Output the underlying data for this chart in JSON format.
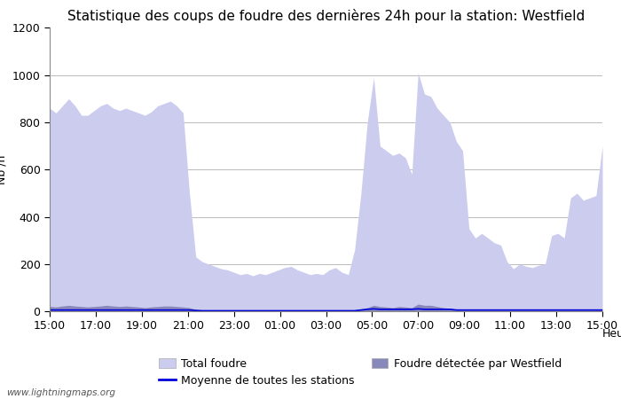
{
  "title": "Statistique des coups de foudre des dernières 24h pour la station: Westfield",
  "xlabel": "Heure",
  "ylabel": "Nb /h",
  "watermark": "www.lightningmaps.org",
  "ylim": [
    0,
    1200
  ],
  "yticks": [
    0,
    200,
    400,
    600,
    800,
    1000,
    1200
  ],
  "x_labels": [
    "15:00",
    "17:00",
    "19:00",
    "21:00",
    "23:00",
    "01:00",
    "03:00",
    "05:00",
    "07:00",
    "09:00",
    "11:00",
    "13:00",
    "15:00"
  ],
  "total_foudre_color": "#ccccee",
  "detected_color": "#8888bb",
  "moyenne_color": "#0000dd",
  "background_color": "#ffffff",
  "grid_color": "#bbbbbb",
  "title_fontsize": 11,
  "axis_fontsize": 9,
  "tick_fontsize": 9,
  "legend_fontsize": 9,
  "total_foudre": [
    860,
    840,
    870,
    900,
    870,
    830,
    830,
    850,
    870,
    880,
    860,
    850,
    860,
    850,
    840,
    830,
    845,
    870,
    880,
    890,
    870,
    840,
    500,
    230,
    210,
    200,
    190,
    180,
    175,
    165,
    155,
    160,
    150,
    160,
    155,
    165,
    175,
    185,
    190,
    175,
    165,
    155,
    160,
    155,
    175,
    185,
    165,
    155,
    260,
    500,
    800,
    990,
    700,
    680,
    660,
    670,
    650,
    580,
    1010,
    920,
    910,
    860,
    830,
    800,
    720,
    680,
    350,
    310,
    330,
    310,
    290,
    280,
    210,
    180,
    200,
    190,
    185,
    195,
    200,
    320,
    330,
    310,
    480,
    500,
    470,
    480,
    490,
    700
  ],
  "detected": [
    20,
    18,
    22,
    25,
    22,
    20,
    18,
    20,
    22,
    25,
    22,
    20,
    22,
    20,
    18,
    15,
    18,
    20,
    22,
    22,
    20,
    18,
    15,
    8,
    5,
    5,
    5,
    5,
    5,
    5,
    5,
    5,
    5,
    5,
    5,
    5,
    5,
    5,
    5,
    5,
    5,
    5,
    5,
    5,
    5,
    5,
    5,
    5,
    5,
    10,
    15,
    25,
    20,
    18,
    15,
    20,
    18,
    15,
    30,
    25,
    25,
    20,
    15,
    12,
    10,
    8,
    5,
    5,
    5,
    5,
    5,
    5,
    5,
    5,
    5,
    5,
    5,
    5,
    5,
    5,
    5,
    5,
    5,
    5,
    5,
    5,
    5,
    10
  ],
  "moyenne": [
    5,
    5,
    5,
    5,
    5,
    5,
    5,
    5,
    5,
    5,
    5,
    5,
    5,
    5,
    5,
    5,
    5,
    5,
    5,
    5,
    5,
    5,
    5,
    3,
    2,
    2,
    2,
    2,
    2,
    2,
    2,
    2,
    2,
    2,
    2,
    2,
    2,
    2,
    2,
    2,
    2,
    2,
    2,
    2,
    2,
    2,
    2,
    2,
    2,
    5,
    8,
    10,
    8,
    8,
    8,
    8,
    8,
    8,
    10,
    8,
    8,
    8,
    8,
    8,
    5,
    5,
    5,
    5,
    5,
    5,
    5,
    5,
    5,
    5,
    5,
    5,
    5,
    5,
    5,
    5,
    5,
    5,
    5,
    5,
    5,
    5,
    5,
    5
  ]
}
